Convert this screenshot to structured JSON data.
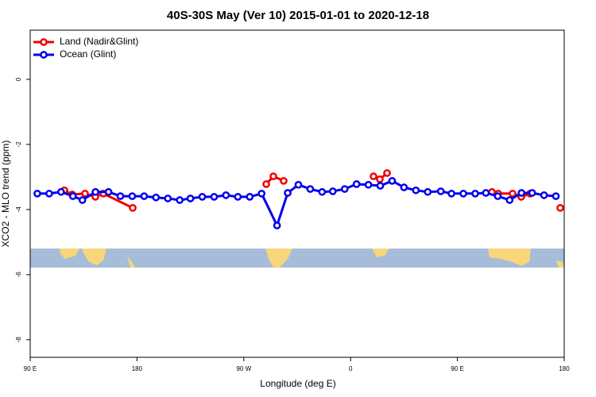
{
  "chart_data": {
    "type": "line",
    "title": "40S-30S May (Ver 10)   2015-01-01 to 2020-12-18",
    "x_label": "Longitude (deg E)",
    "y_label": "XCO2 - MLO trend (ppm)",
    "xlim": [
      90,
      540
    ],
    "ylim": [
      -8.54,
      1.51
    ],
    "xticks": [
      {
        "value": 90,
        "label": "90 E"
      },
      {
        "value": 180,
        "label": "180"
      },
      {
        "value": 270,
        "label": "90 W"
      },
      {
        "value": 360,
        "label": "0"
      },
      {
        "value": 450,
        "label": "90 E"
      },
      {
        "value": 540,
        "label": "180"
      }
    ],
    "yticks": [
      0,
      -2,
      -4,
      -6,
      -8
    ],
    "legend": "top-left",
    "series": [
      {
        "name": "Land (Nadir&Glint)",
        "color": "#ee0000",
        "x": [
          118.8,
          125.5,
          136.2,
          144.9,
          151.6,
          176.4,
          null,
          288.9,
          294.9,
          303.6,
          null,
          379.3,
          384.6,
          390.7,
          null,
          479.1,
          484.4,
          496.5,
          503.8,
          511.2,
          null,
          536.7
        ],
        "values": [
          -3.41,
          -3.54,
          -3.51,
          -3.61,
          -3.51,
          -3.95,
          null,
          -3.22,
          -2.98,
          -3.12,
          null,
          -2.98,
          -3.07,
          -2.88,
          null,
          -3.46,
          -3.51,
          -3.51,
          -3.61,
          -3.51,
          null,
          -3.95
        ]
      },
      {
        "name": "Ocean (Glint)",
        "color": "#0000ee",
        "x": [
          96,
          106,
          116,
          126,
          134,
          145,
          156,
          166,
          176,
          186,
          196,
          206,
          216,
          225,
          235,
          245,
          255,
          265,
          275,
          285,
          298,
          307,
          316,
          326,
          336,
          345,
          355,
          365,
          375,
          385,
          395,
          405,
          415,
          425,
          436,
          445,
          455,
          465,
          474,
          484,
          494,
          504,
          513,
          523,
          533
        ],
        "values": [
          -3.51,
          -3.51,
          -3.46,
          -3.59,
          -3.71,
          -3.46,
          -3.46,
          -3.59,
          -3.59,
          -3.59,
          -3.63,
          -3.66,
          -3.71,
          -3.66,
          -3.61,
          -3.61,
          -3.56,
          -3.61,
          -3.61,
          -3.51,
          -4.49,
          -3.49,
          -3.24,
          -3.37,
          -3.46,
          -3.44,
          -3.37,
          -3.22,
          -3.24,
          -3.27,
          -3.12,
          -3.32,
          -3.41,
          -3.46,
          -3.44,
          -3.51,
          -3.51,
          -3.51,
          -3.49,
          -3.59,
          -3.71,
          -3.49,
          -3.49,
          -3.56,
          -3.59
        ]
      }
    ]
  }
}
